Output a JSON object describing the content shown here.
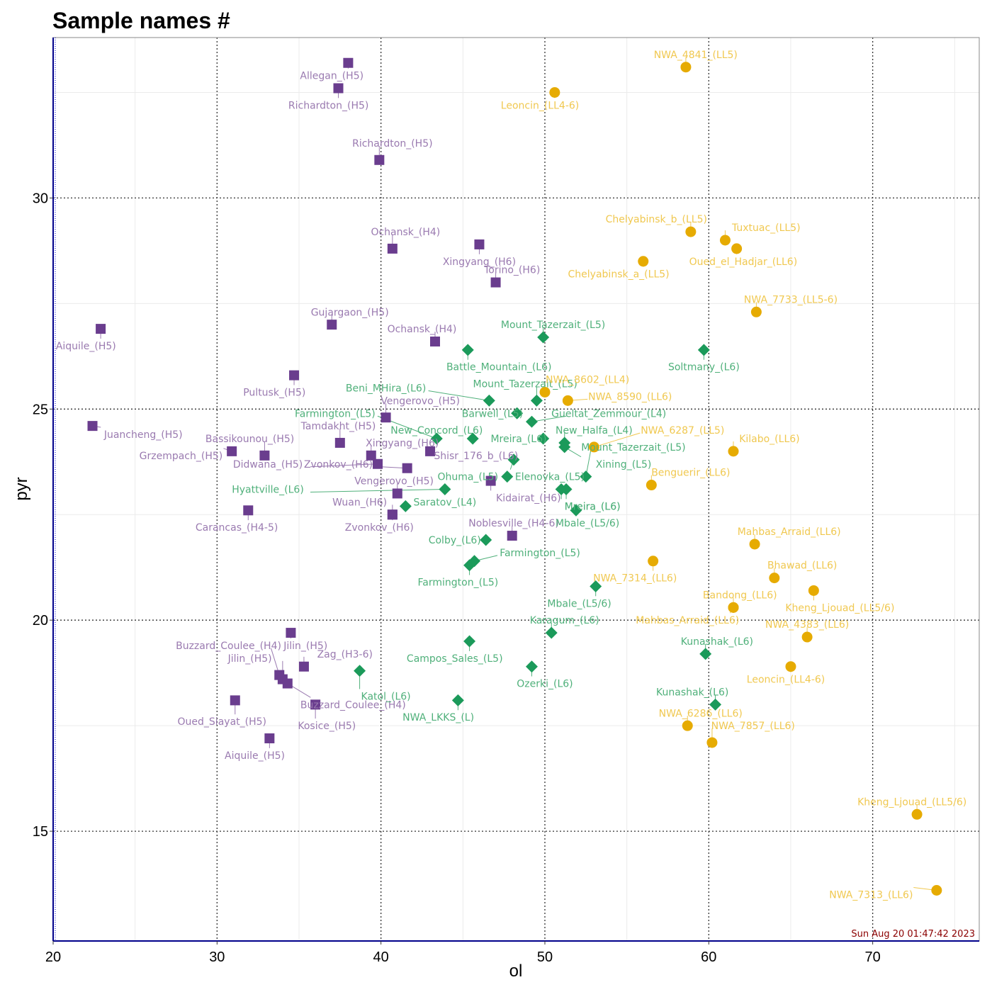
{
  "chart_data": {
    "type": "scatter",
    "title": "Sample names #",
    "xlabel": "ol",
    "ylabel": "pyr",
    "xlim": [
      20,
      76.5
    ],
    "ylim": [
      12.4,
      33.8
    ],
    "xticks": [
      20,
      30,
      40,
      50,
      60,
      70
    ],
    "yticks": [
      15,
      20,
      25,
      30
    ],
    "grid": true,
    "timestamp": "Sun Aug 20 01:47:42 2023",
    "series": [
      {
        "group": "H",
        "marker": "square",
        "color": "#6a3d8e",
        "label_color": "#9a7ab0",
        "points": [
          {
            "x": 38.0,
            "y": 33.2,
            "label": "Allegan_(H5)",
            "lx": 37.0,
            "ly": 32.9
          },
          {
            "x": 37.4,
            "y": 32.6,
            "label": "Richardton_(H5)",
            "lx": 36.8,
            "ly": 32.2
          },
          {
            "x": 39.9,
            "y": 30.9,
            "label": "Richardton_(H5)",
            "lx": 40.7,
            "ly": 31.3
          },
          {
            "x": 22.9,
            "y": 26.9,
            "label": "Aiquile_(H5)",
            "lx": 22.0,
            "ly": 26.5
          },
          {
            "x": 22.4,
            "y": 24.6,
            "label": "Juancheng_(H5)",
            "lx": 25.5,
            "ly": 24.4
          },
          {
            "x": 34.7,
            "y": 25.8,
            "label": "Pultusk_(H5)",
            "lx": 33.5,
            "ly": 25.4
          },
          {
            "x": 37.0,
            "y": 27.0,
            "label": "Gujargaon_(H5)",
            "lx": 38.1,
            "ly": 27.3
          },
          {
            "x": 40.7,
            "y": 28.8,
            "label": "Ochansk_(H4)",
            "lx": 41.5,
            "ly": 29.2
          },
          {
            "x": 46.0,
            "y": 28.9,
            "label": "Xingyang_(H6)",
            "lx": 46.0,
            "ly": 28.5
          },
          {
            "x": 47.0,
            "y": 28.0,
            "label": "Torino_(H6)",
            "lx": 48.0,
            "ly": 28.3
          },
          {
            "x": 43.3,
            "y": 26.6,
            "label": "Ochansk_(H4)",
            "lx": 42.5,
            "ly": 26.9
          },
          {
            "x": 40.3,
            "y": 24.8,
            "label": "Vengerovo_(H5)",
            "lx": 42.4,
            "ly": 25.2
          },
          {
            "x": 37.5,
            "y": 24.2,
            "label": "Tamdakht_(H5)",
            "lx": 37.4,
            "ly": 24.6
          },
          {
            "x": 30.9,
            "y": 24.0,
            "label": "Grzempach_(H5)",
            "lx": 27.8,
            "ly": 23.9
          },
          {
            "x": 32.9,
            "y": 23.9,
            "label": "Bassikounou_(H5)",
            "lx": 32.0,
            "ly": 24.3
          },
          {
            "x": 39.4,
            "y": 23.9,
            "label": "Xingyang_(H6)",
            "lx": 41.3,
            "ly": 24.2
          },
          {
            "x": 39.8,
            "y": 23.7,
            "label": "Didwana_(H5)",
            "lx": 33.1,
            "ly": 23.7
          },
          {
            "x": 43.0,
            "y": 24.0,
            "label": "Shisr_176_b_(L6)",
            "lx": 45.8,
            "ly": 23.9
          },
          {
            "x": 41.6,
            "y": 23.6,
            "label": "Zvonkov_(H6)",
            "lx": 37.4,
            "ly": 23.7
          },
          {
            "x": 46.7,
            "y": 23.3,
            "label": "Kidairat_(H6)",
            "lx": 49.0,
            "ly": 22.9
          },
          {
            "x": 41.0,
            "y": 23.0,
            "label": "Vengerovo_(H5)",
            "lx": 40.8,
            "ly": 23.3
          },
          {
            "x": 40.7,
            "y": 22.5,
            "label": "Wuan_(H6)",
            "lx": 38.7,
            "ly": 22.8
          },
          {
            "x": 40.7,
            "y": 22.5,
            "label": "Zvonkov_(H6)",
            "lx": 39.9,
            "ly": 22.2
          },
          {
            "x": 31.9,
            "y": 22.6,
            "label": "Carancas_(H4-5)",
            "lx": 31.2,
            "ly": 22.2
          },
          {
            "x": 48.0,
            "y": 22.0,
            "label": "Noblesville_(H4-6)",
            "lx": 48.1,
            "ly": 22.3
          },
          {
            "x": 34.5,
            "y": 19.7,
            "label": "Jilin_(H5)",
            "lx": 35.4,
            "ly": 19.4
          },
          {
            "x": 33.8,
            "y": 18.7,
            "label": "Buzzard_Coulee_(H4)",
            "lx": 30.7,
            "ly": 19.4
          },
          {
            "x": 34.0,
            "y": 18.6,
            "label": "Jilin_(H5)",
            "lx": 32.0,
            "ly": 19.1
          },
          {
            "x": 34.3,
            "y": 18.5,
            "label": "Buzzard_Coulee_(H4)",
            "lx": 38.3,
            "ly": 18.0
          },
          {
            "x": 35.3,
            "y": 18.9,
            "label": "Zag_(H3-6)",
            "lx": 37.8,
            "ly": 19.2
          },
          {
            "x": 31.1,
            "y": 18.1,
            "label": "Oued_Siayat_(H5)",
            "lx": 30.3,
            "ly": 17.6
          },
          {
            "x": 36.0,
            "y": 18.0,
            "label": "Kosice_(H5)",
            "lx": 36.7,
            "ly": 17.5
          },
          {
            "x": 33.2,
            "y": 17.2,
            "label": "Aiquile_(H5)",
            "lx": 32.3,
            "ly": 16.8
          }
        ]
      },
      {
        "group": "L",
        "marker": "diamond",
        "color": "#1b9a5a",
        "label_color": "#4fb07a",
        "points": [
          {
            "x": 49.9,
            "y": 26.7,
            "label": "Mount_Tazerzait_(L5)",
            "lx": 50.5,
            "ly": 27.0
          },
          {
            "x": 45.3,
            "y": 26.4,
            "label": "Battle_Mountain_(L6)",
            "lx": 47.2,
            "ly": 26.0
          },
          {
            "x": 59.7,
            "y": 26.4,
            "label": "Soltmany_(L6)",
            "lx": 59.7,
            "ly": 26.0
          },
          {
            "x": 46.6,
            "y": 25.2,
            "label": "Beni_MHira_(L6)",
            "lx": 40.3,
            "ly": 25.5
          },
          {
            "x": 49.5,
            "y": 25.2,
            "label": "Mount_Tazerzait_(L5)",
            "lx": 48.8,
            "ly": 25.6
          },
          {
            "x": 48.3,
            "y": 24.9,
            "label": "Barwell_(L5)",
            "lx": 46.8,
            "ly": 24.9
          },
          {
            "x": 49.2,
            "y": 24.7,
            "label": "Gueltat_Zemmour_(L4)",
            "lx": 53.9,
            "ly": 24.9
          },
          {
            "x": 43.4,
            "y": 24.3,
            "label": "Farmington_(L5)",
            "lx": 37.2,
            "ly": 24.9
          },
          {
            "x": 45.6,
            "y": 24.3,
            "label": "New_Concord_(L6)",
            "lx": 43.4,
            "ly": 24.5
          },
          {
            "x": 49.9,
            "y": 24.3,
            "label": "Mreira_(L6)",
            "lx": 48.4,
            "ly": 24.3
          },
          {
            "x": 51.2,
            "y": 24.2,
            "label": "New_Halfa_(L4)",
            "lx": 53.0,
            "ly": 24.5
          },
          {
            "x": 51.2,
            "y": 24.1,
            "label": "Xining_(L5)",
            "lx": 54.8,
            "ly": 23.7
          },
          {
            "x": 48.1,
            "y": 23.8,
            "label": "Ohuma_(L5)",
            "lx": 45.3,
            "ly": 23.4
          },
          {
            "x": 47.7,
            "y": 23.4,
            "label": "Elenovka_(L5)",
            "lx": 50.3,
            "ly": 23.4
          },
          {
            "x": 52.5,
            "y": 23.4,
            "label": "Mount_Tazerzait_(L5)",
            "lx": 55.4,
            "ly": 24.1
          },
          {
            "x": 51.0,
            "y": 23.1,
            "label": "Mreira_(L6)",
            "lx": 52.9,
            "ly": 22.7
          },
          {
            "x": 51.3,
            "y": 23.1,
            "label": "Mreira_(L6)",
            "lx": 52.9,
            "ly": 22.7
          },
          {
            "x": 43.9,
            "y": 23.1,
            "label": "Hyattville_(L6)",
            "lx": 33.1,
            "ly": 23.1
          },
          {
            "x": 41.5,
            "y": 22.7,
            "label": "Saratov_(L4)",
            "lx": 43.9,
            "ly": 22.8
          },
          {
            "x": 51.9,
            "y": 22.6,
            "label": "Mbale_(L5/6)",
            "lx": 52.6,
            "ly": 22.3
          },
          {
            "x": 46.4,
            "y": 21.9,
            "label": "Colby_(L6)",
            "lx": 44.5,
            "ly": 21.9
          },
          {
            "x": 45.7,
            "y": 21.4,
            "label": "Farmington_(L5)",
            "lx": 49.7,
            "ly": 21.6
          },
          {
            "x": 45.4,
            "y": 21.3,
            "label": "Farmington_(L5)",
            "lx": 44.7,
            "ly": 20.9
          },
          {
            "x": 53.1,
            "y": 20.8,
            "label": "Mbale_(L5/6)",
            "lx": 52.1,
            "ly": 20.4
          },
          {
            "x": 50.4,
            "y": 19.7,
            "label": "Karagum_(L6)",
            "lx": 51.2,
            "ly": 20.0
          },
          {
            "x": 45.4,
            "y": 19.5,
            "label": "Campos_Sales_(L5)",
            "lx": 44.5,
            "ly": 19.1
          },
          {
            "x": 49.2,
            "y": 18.9,
            "label": "Ozerki_(L6)",
            "lx": 50.0,
            "ly": 18.5
          },
          {
            "x": 38.7,
            "y": 18.8,
            "label": "Katol_(L6)",
            "lx": 40.3,
            "ly": 18.2
          },
          {
            "x": 59.8,
            "y": 19.2,
            "label": "Kunashak_(L6)",
            "lx": 60.5,
            "ly": 19.5
          },
          {
            "x": 60.4,
            "y": 18.0,
            "label": "Kunashak_(L6)",
            "lx": 59.0,
            "ly": 18.3
          },
          {
            "x": 44.7,
            "y": 18.1,
            "label": "NWA_LKKS_(L)",
            "lx": 43.5,
            "ly": 17.7
          }
        ]
      },
      {
        "group": "LL",
        "marker": "circle",
        "color": "#e6ab02",
        "label_color": "#f0c850",
        "points": [
          {
            "x": 58.6,
            "y": 33.1,
            "label": "NWA_4841_(LL5)",
            "lx": 59.2,
            "ly": 33.4
          },
          {
            "x": 50.6,
            "y": 32.5,
            "label": "Leoncin_(LL4-6)",
            "lx": 49.7,
            "ly": 32.2
          },
          {
            "x": 58.9,
            "y": 29.2,
            "label": "Chelyabinsk_b_(LL5)",
            "lx": 56.8,
            "ly": 29.5
          },
          {
            "x": 61.0,
            "y": 29.0,
            "label": "Tuxtuac_(LL5)",
            "lx": 63.5,
            "ly": 29.3
          },
          {
            "x": 61.7,
            "y": 28.8,
            "label": "Oued_el_Hadjar_(LL6)",
            "lx": 62.1,
            "ly": 28.5
          },
          {
            "x": 56.0,
            "y": 28.5,
            "label": "Chelyabinsk_a_(LL5)",
            "lx": 54.5,
            "ly": 28.2
          },
          {
            "x": 62.9,
            "y": 27.3,
            "label": "NWA_7733_(LL5-6)",
            "lx": 65.0,
            "ly": 27.6
          },
          {
            "x": 50.0,
            "y": 25.4,
            "label": "NWA_8602_(LL4)",
            "lx": 52.6,
            "ly": 25.7
          },
          {
            "x": 51.4,
            "y": 25.2,
            "label": "NWA_8590_(LL6)",
            "lx": 55.2,
            "ly": 25.3
          },
          {
            "x": 53.0,
            "y": 24.1,
            "label": "NWA_6287_(LL5)",
            "lx": 58.4,
            "ly": 24.5
          },
          {
            "x": 61.5,
            "y": 24.0,
            "label": "Kilabo_(LL6)",
            "lx": 63.7,
            "ly": 24.3
          },
          {
            "x": 56.5,
            "y": 23.2,
            "label": "Benguerir_(LL6)",
            "lx": 58.9,
            "ly": 23.5
          },
          {
            "x": 62.8,
            "y": 21.8,
            "label": "Mahbas_Arraid_(LL6)",
            "lx": 64.9,
            "ly": 22.1
          },
          {
            "x": 56.6,
            "y": 21.4,
            "label": "NWA_7314_(LL6)",
            "lx": 55.5,
            "ly": 21.0
          },
          {
            "x": 64.0,
            "y": 21.0,
            "label": "Bhawad_(LL6)",
            "lx": 65.7,
            "ly": 21.3
          },
          {
            "x": 66.4,
            "y": 20.7,
            "label": "Kheng_Ljouad_(LL5/6)",
            "lx": 68.0,
            "ly": 20.3
          },
          {
            "x": 61.5,
            "y": 20.3,
            "label": "Bandong_(LL6)",
            "lx": 61.9,
            "ly": 20.6
          },
          {
            "x": 61.5,
            "y": 20.3,
            "label": "Mahbas_Arraid_(LL6)",
            "lx": 58.7,
            "ly": 20.0
          },
          {
            "x": 66.0,
            "y": 19.6,
            "label": "NWA_4383_(LL6)",
            "lx": 66.0,
            "ly": 19.9
          },
          {
            "x": 65.0,
            "y": 18.9,
            "label": "Leoncin_(LL4-6)",
            "lx": 64.7,
            "ly": 18.6
          },
          {
            "x": 58.7,
            "y": 17.5,
            "label": "NWA_6286_(LL6)",
            "lx": 59.5,
            "ly": 17.8
          },
          {
            "x": 60.2,
            "y": 17.1,
            "label": "NWA_7857_(LL6)",
            "lx": 62.7,
            "ly": 17.5
          },
          {
            "x": 72.7,
            "y": 15.4,
            "label": "Kheng_Ljouad_(LL5/6)",
            "lx": 72.4,
            "ly": 15.7
          },
          {
            "x": 73.9,
            "y": 13.6,
            "label": "NWA_7313_(LL6)",
            "lx": 69.9,
            "ly": 13.5
          }
        ]
      }
    ]
  }
}
